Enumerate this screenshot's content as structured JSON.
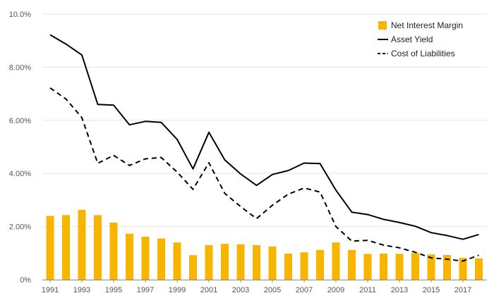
{
  "chart_data": {
    "type": "bar",
    "title": "",
    "xlabel": "",
    "ylabel": "",
    "ylim": [
      0,
      10
    ],
    "grid": true,
    "legend_placement": "top-right",
    "x": [
      1991,
      1992,
      1993,
      1994,
      1995,
      1996,
      1997,
      1998,
      1999,
      2000,
      2001,
      2002,
      2003,
      2004,
      2005,
      2006,
      2007,
      2008,
      2009,
      2010,
      2011,
      2012,
      2013,
      2014,
      2015,
      2016,
      2017,
      2018
    ],
    "x_tick_labels": [
      "1991",
      "1993",
      "1995",
      "1997",
      "1999",
      "2001",
      "2003",
      "2005",
      "2007",
      "2009",
      "2011",
      "2013",
      "2015",
      "2017"
    ],
    "y_ticks": [
      0,
      2,
      4,
      6,
      8,
      10
    ],
    "y_tick_labels": [
      "0%",
      "2.00%",
      "4.00%",
      "6.00%",
      "8.00%",
      "10.0%"
    ],
    "series": [
      {
        "name": "Net Interest Margin",
        "type": "bar",
        "color": "#f7b500",
        "values": [
          2.4,
          2.43,
          2.63,
          2.43,
          2.15,
          1.73,
          1.62,
          1.55,
          1.4,
          0.92,
          1.3,
          1.35,
          1.33,
          1.3,
          1.25,
          0.98,
          1.03,
          1.12,
          1.4,
          1.12,
          0.97,
          0.98,
          0.97,
          1.0,
          0.95,
          0.93,
          0.82,
          0.8
        ]
      },
      {
        "name": "Asset Yield",
        "type": "line",
        "style": "solid",
        "color": "#000000",
        "values": [
          9.22,
          8.87,
          8.46,
          6.6,
          6.57,
          5.83,
          5.96,
          5.92,
          5.28,
          4.17,
          5.55,
          4.51,
          3.98,
          3.55,
          3.96,
          4.11,
          4.39,
          4.37,
          3.37,
          2.54,
          2.45,
          2.27,
          2.15,
          2.01,
          1.77,
          1.66,
          1.52,
          1.7
        ]
      },
      {
        "name": "Cost of Liabilities",
        "type": "line",
        "style": "dashed",
        "color": "#000000",
        "values": [
          7.22,
          6.8,
          6.1,
          4.38,
          4.68,
          4.3,
          4.55,
          4.6,
          4.05,
          3.4,
          4.4,
          3.25,
          2.75,
          2.3,
          2.8,
          3.22,
          3.45,
          3.3,
          2.0,
          1.45,
          1.48,
          1.3,
          1.2,
          1.03,
          0.82,
          0.77,
          0.7,
          0.92
        ]
      }
    ]
  }
}
